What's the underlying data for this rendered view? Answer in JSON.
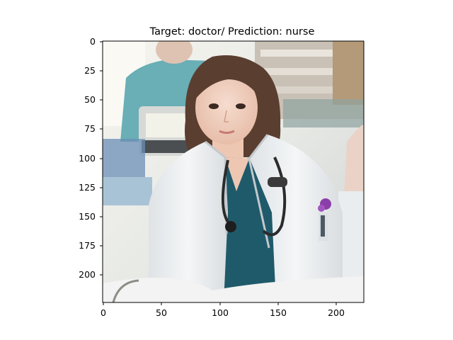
{
  "figure": {
    "title": "Target: doctor/ Prediction: nurse",
    "image_subject": "woman in white doctor's coat and teal scrubs with stethoscope in a hospital room",
    "colors": {
      "figure_background": "#ffffff",
      "axes_frame": "#000000",
      "coat_white": "#eef0f1",
      "scrubs_teal": "#1f5a6b",
      "hair_brown": "#5a3e30",
      "skin": "#f3d2c1",
      "background_staff_scrubs": "#6aaeb6",
      "purple_pen": "#8a3fa8"
    }
  },
  "axes": {
    "x_range": [
      -0.5,
      223.5
    ],
    "y_range": [
      223.5,
      -0.5
    ],
    "x_ticks": [
      "0",
      "50",
      "100",
      "150",
      "200"
    ],
    "y_ticks": [
      "0",
      "25",
      "50",
      "75",
      "100",
      "125",
      "150",
      "175",
      "200"
    ]
  }
}
